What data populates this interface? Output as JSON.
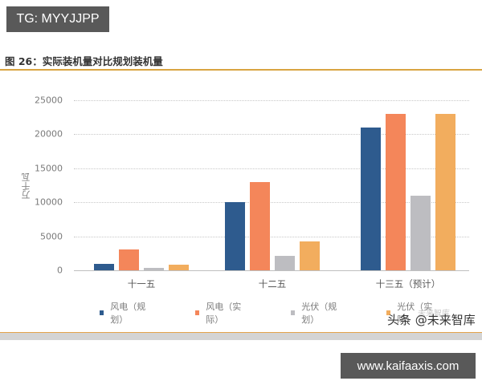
{
  "badges": {
    "top_left": "TG: MYYJJPP",
    "bottom_right": "www.kaifaaxis.com"
  },
  "figure": {
    "title": "图 26：实际装机量对比规划装机量",
    "watermark": "头条 @未来智库",
    "watermark_faint": "未来智库"
  },
  "colors": {
    "wind_plan": "#2e5b8e",
    "wind_actual": "#f4865a",
    "pv_plan": "#bdbdc1",
    "pv_actual": "#f2ad5e",
    "title_rule": "#d9a441"
  },
  "chart_data": {
    "type": "bar",
    "title": "实际装机量对比规划装机量",
    "xlabel": "",
    "ylabel": "万千瓦",
    "ylim": [
      0,
      25000
    ],
    "yticks": [
      0,
      5000,
      10000,
      15000,
      20000,
      25000
    ],
    "ytick_labels": [
      "0",
      "5000",
      "10000",
      "15000",
      "20000",
      "25000"
    ],
    "grid": true,
    "legend_position": "bottom",
    "categories": [
      "十一五",
      "十二五",
      "十三五（预计）"
    ],
    "series": [
      {
        "name": "风电（规划）",
        "color": "#2e5b8e",
        "values": [
          1000,
          10000,
          21000
        ]
      },
      {
        "name": "风电（实际）",
        "color": "#f4865a",
        "values": [
          3100,
          13000,
          23000
        ]
      },
      {
        "name": "光伏（规划）",
        "color": "#bdbdc1",
        "values": [
          300,
          2100,
          11000
        ]
      },
      {
        "name": "光伏（实际）",
        "color": "#f2ad5e",
        "values": [
          800,
          4300,
          23000
        ]
      }
    ]
  }
}
